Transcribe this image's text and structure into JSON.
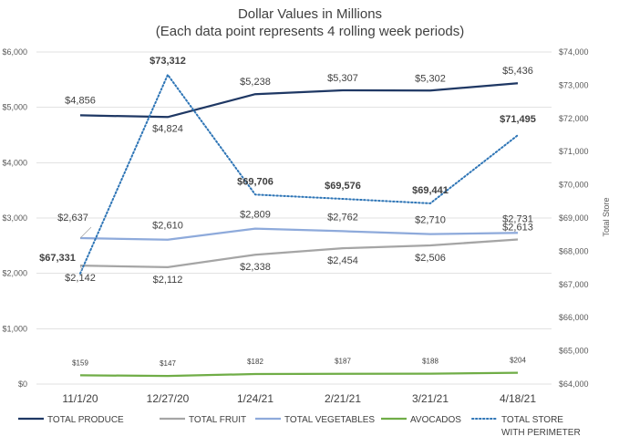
{
  "chart_data": {
    "type": "line",
    "title": [
      "Dollar Values in Millions",
      "(Each data point represents 4 rolling week periods)"
    ],
    "categories": [
      "11/1/20",
      "12/27/20",
      "1/24/21",
      "2/21/21",
      "3/21/21",
      "4/18/21"
    ],
    "y_left": {
      "ylim": [
        0,
        6000
      ],
      "ticks": [
        0,
        1000,
        2000,
        3000,
        4000,
        5000,
        6000
      ],
      "tick_labels": [
        "$0",
        "$1,000",
        "$2,000",
        "$3,000",
        "$4,000",
        "$5,000",
        "$6,000"
      ]
    },
    "y_right": {
      "title": "Total Store",
      "ylim": [
        64000,
        74000
      ],
      "ticks": [
        64000,
        65000,
        66000,
        67000,
        68000,
        69000,
        70000,
        71000,
        72000,
        73000,
        74000
      ],
      "tick_labels": [
        "$64,000",
        "$65,000",
        "$66,000",
        "$67,000",
        "$68,000",
        "$69,000",
        "$70,000",
        "$71,000",
        "$72,000",
        "$73,000",
        "$74,000"
      ]
    },
    "grid": true,
    "legend_position": "bottom",
    "series": [
      {
        "name": "TOTAL PRODUCE",
        "axis": "left",
        "color": "#1f3864",
        "style": "solid",
        "values": [
          4856,
          4824,
          5238,
          5307,
          5302,
          5436
        ],
        "labels": [
          "$4,856",
          "$4,824",
          "$5,238",
          "$5,307",
          "$5,302",
          "$5,436"
        ]
      },
      {
        "name": "TOTAL FRUIT",
        "axis": "left",
        "color": "#a5a5a5",
        "style": "solid",
        "values": [
          2142,
          2112,
          2338,
          2454,
          2506,
          2613
        ],
        "labels": [
          "$2,142",
          "$2,112",
          "$2,338",
          "$2,454",
          "$2,506",
          "$2,613"
        ]
      },
      {
        "name": "TOTAL VEGETABLES",
        "axis": "left",
        "color": "#8eaadb",
        "style": "solid",
        "values": [
          2637,
          2610,
          2809,
          2762,
          2710,
          2731
        ],
        "labels": [
          "$2,637",
          "$2,610",
          "$2,809",
          "$2,762",
          "$2,710",
          "$2,731"
        ]
      },
      {
        "name": "AVOCADOS",
        "axis": "left",
        "color": "#70ad47",
        "style": "solid",
        "values": [
          159,
          147,
          182,
          187,
          188,
          204
        ],
        "labels": [
          "$159",
          "$147",
          "$182",
          "$187",
          "$188",
          "$204"
        ]
      },
      {
        "name": "TOTAL STORE WITH PERIMETER",
        "legend_lines": [
          "TOTAL STORE",
          "WITH PERIMETER"
        ],
        "axis": "right",
        "color": "#2e75b6",
        "style": "dotted",
        "values": [
          67331,
          73312,
          69706,
          69576,
          69441,
          71495
        ],
        "labels": [
          "$67,331",
          "$73,312",
          "$69,706",
          "$69,576",
          "$69,441",
          "$71,495"
        ]
      }
    ]
  }
}
